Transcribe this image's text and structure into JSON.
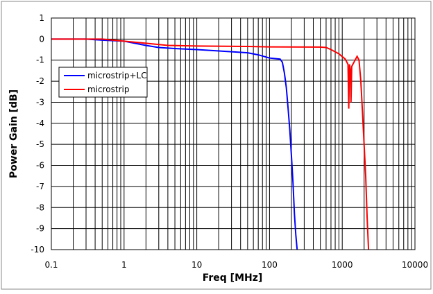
{
  "chart_data": {
    "type": "line",
    "title": "",
    "xlabel": "Freq [MHz]",
    "ylabel": "Power Gain [dB]",
    "xscale": "log",
    "xlim": [
      0.1,
      10000
    ],
    "ylim": [
      -10,
      1
    ],
    "grid": true,
    "legend_position": "left",
    "xticks": [
      "0.1",
      "1",
      "10",
      "100",
      "1000",
      "10000"
    ],
    "yticks": [
      "1",
      "0",
      "-1",
      "-2",
      "-3",
      "-4",
      "-5",
      "-6",
      "-7",
      "-8",
      "-9",
      "-10"
    ],
    "series": [
      {
        "name": "microstrip+LC",
        "color": "#0000ff",
        "x": [
          0.1,
          0.3,
          0.5,
          1,
          2,
          3,
          5,
          10,
          30,
          50,
          70,
          100,
          140,
          150,
          160,
          170,
          180,
          190,
          200,
          210,
          220,
          230,
          240
        ],
        "y": [
          0,
          0,
          -0.05,
          -0.1,
          -0.3,
          -0.4,
          -0.45,
          -0.5,
          -0.6,
          -0.65,
          -0.75,
          -0.9,
          -0.95,
          -1.1,
          -1.6,
          -2.3,
          -3.3,
          -4.3,
          -5.5,
          -6.8,
          -8.3,
          -9.3,
          -10
        ]
      },
      {
        "name": "microstrip",
        "color": "#ff0000",
        "x": [
          0.1,
          0.5,
          1,
          2,
          4,
          10,
          50,
          100,
          500,
          600,
          700,
          900,
          1100,
          1200,
          1230,
          1260,
          1300,
          1320,
          1350,
          1500,
          1600,
          1700,
          1800,
          1900,
          2000,
          2100,
          2200,
          2300
        ],
        "y": [
          0,
          0,
          -0.1,
          -0.2,
          -0.3,
          -0.33,
          -0.35,
          -0.37,
          -0.38,
          -0.4,
          -0.5,
          -0.7,
          -0.95,
          -1.2,
          -3.3,
          -1.2,
          -1.5,
          -3.0,
          -1.3,
          -1.0,
          -0.82,
          -1.0,
          -2.0,
          -3.5,
          -5.0,
          -6.5,
          -8.5,
          -10
        ]
      }
    ]
  }
}
